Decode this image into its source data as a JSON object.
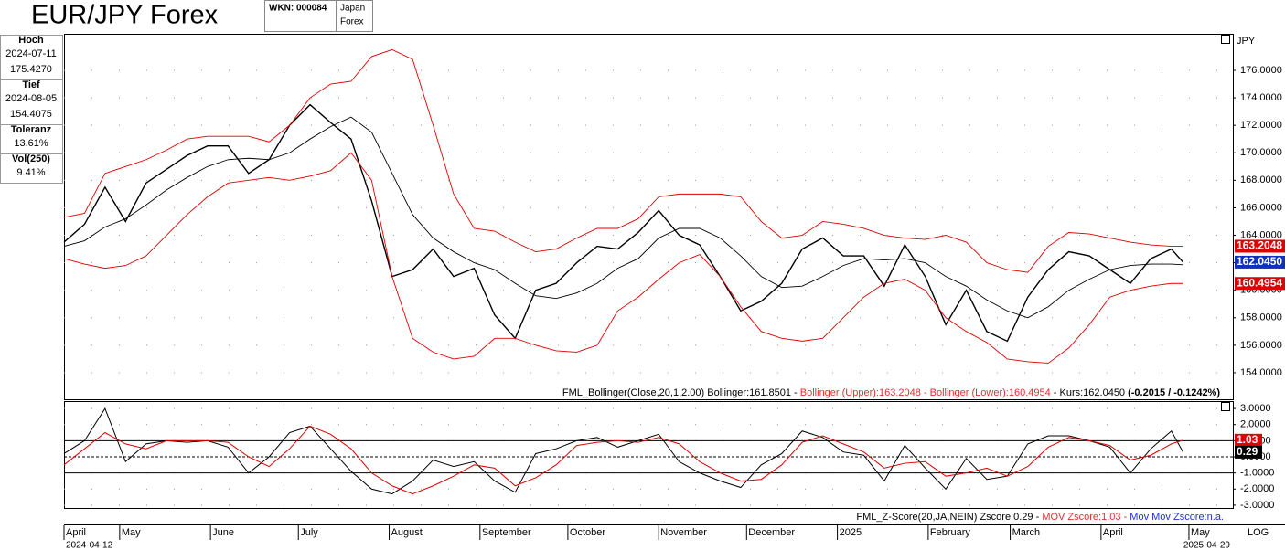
{
  "header": {
    "title": "EUR/JPY Forex",
    "wkn": "WKN: 000084",
    "market": [
      "Japan",
      "Forex"
    ]
  },
  "info_panel": [
    {
      "label": "Hoch",
      "values": [
        "2024-07-11",
        "175.4270"
      ]
    },
    {
      "label": "Tief",
      "values": [
        "2024-08-05",
        "154.4075"
      ]
    },
    {
      "label": "Toleranz",
      "values": [
        "13.61%"
      ]
    },
    {
      "label": "Vol(250)",
      "values": [
        "9.41%"
      ]
    }
  ],
  "scale_button": "LOG",
  "chart_data": [
    {
      "type": "line",
      "ylabel": "JPY",
      "grid": true,
      "xlim": [
        "2024-04-12",
        "2025-05-16"
      ],
      "ylim": [
        152.07,
        178.59
      ],
      "yticks": [
        {
          "value": 154,
          "label": "154.0000"
        },
        {
          "value": 156,
          "label": "156.0000"
        },
        {
          "value": 158,
          "label": "158.0000"
        },
        {
          "value": 160,
          "label": "160.0000"
        },
        {
          "value": 162,
          "label": "162.0000"
        },
        {
          "value": 164,
          "label": "164.0000"
        },
        {
          "value": 166,
          "label": "166.0000"
        },
        {
          "value": 168,
          "label": "168.0000"
        },
        {
          "value": 170,
          "label": "170.0000"
        },
        {
          "value": 172,
          "label": "172.0000"
        },
        {
          "value": 174,
          "label": "174.0000"
        },
        {
          "value": 176,
          "label": "176.0000"
        }
      ],
      "x": [
        "2024-04-12",
        "2024-04-19",
        "2024-04-26",
        "2024-05-03",
        "2024-05-10",
        "2024-05-17",
        "2024-05-24",
        "2024-05-31",
        "2024-06-07",
        "2024-06-14",
        "2024-06-21",
        "2024-06-28",
        "2024-07-05",
        "2024-07-12",
        "2024-07-19",
        "2024-07-26",
        "2024-08-02",
        "2024-08-09",
        "2024-08-16",
        "2024-08-23",
        "2024-08-30",
        "2024-09-06",
        "2024-09-13",
        "2024-09-20",
        "2024-09-27",
        "2024-10-04",
        "2024-10-11",
        "2024-10-18",
        "2024-10-25",
        "2024-11-01",
        "2024-11-08",
        "2024-11-15",
        "2024-11-22",
        "2024-11-29",
        "2024-12-06",
        "2024-12-13",
        "2024-12-20",
        "2024-12-27",
        "2025-01-03",
        "2025-01-10",
        "2025-01-17",
        "2025-01-24",
        "2025-01-31",
        "2025-02-07",
        "2025-02-14",
        "2025-02-21",
        "2025-02-28",
        "2025-03-07",
        "2025-03-14",
        "2025-03-21",
        "2025-03-28",
        "2025-04-04",
        "2025-04-11",
        "2025-04-18",
        "2025-04-25",
        "2025-04-29"
      ],
      "series": [
        {
          "color": "#000000",
          "width": 1.4,
          "values": [
            163.5,
            164.8,
            167.5,
            165.0,
            167.8,
            168.8,
            169.8,
            170.5,
            170.5,
            168.5,
            169.5,
            172.0,
            173.5,
            172.2,
            171.0,
            166.5,
            161.0,
            161.5,
            163.0,
            161.0,
            161.6,
            158.2,
            156.5,
            160.0,
            160.5,
            162.0,
            163.2,
            163.0,
            164.2,
            165.8,
            164.0,
            163.3,
            161.0,
            158.5,
            159.2,
            160.5,
            163.0,
            163.8,
            162.5,
            162.5,
            160.3,
            163.3,
            161.0,
            157.5,
            160.0,
            157.0,
            156.3,
            159.5,
            161.5,
            162.8,
            162.5,
            161.5,
            160.5,
            162.3,
            163.0,
            162.045
          ]
        },
        {
          "color": "#000000",
          "width": 0.9,
          "values": [
            163.2,
            163.6,
            164.6,
            165.2,
            166.2,
            167.3,
            168.2,
            169.0,
            169.5,
            169.6,
            169.5,
            170.0,
            171.0,
            171.9,
            172.6,
            171.5,
            168.5,
            165.5,
            163.8,
            162.8,
            162.0,
            161.5,
            160.5,
            159.6,
            159.4,
            159.8,
            160.5,
            161.6,
            162.3,
            163.8,
            164.5,
            164.5,
            163.8,
            162.5,
            161.0,
            160.2,
            160.3,
            161.0,
            161.8,
            162.3,
            162.2,
            162.3,
            162.0,
            161.0,
            160.3,
            159.3,
            158.5,
            158.0,
            158.8,
            160.0,
            160.8,
            161.5,
            161.8,
            161.9,
            161.9,
            161.8501
          ]
        },
        {
          "color": "#e00000",
          "width": 0.9,
          "values": [
            165.3,
            165.6,
            168.5,
            169.0,
            169.5,
            170.2,
            171.0,
            171.2,
            171.2,
            171.2,
            170.8,
            172.0,
            174.0,
            175.0,
            175.2,
            177.0,
            177.5,
            176.8,
            172.0,
            167.0,
            164.5,
            164.3,
            163.5,
            162.8,
            163.0,
            163.8,
            164.5,
            164.5,
            165.2,
            166.8,
            167.0,
            167.0,
            167.0,
            166.8,
            165.0,
            163.8,
            164.0,
            165.0,
            164.8,
            164.5,
            164.0,
            163.8,
            163.7,
            164.0,
            163.5,
            162.0,
            161.5,
            161.3,
            163.2,
            164.2,
            164.1,
            163.8,
            163.5,
            163.3,
            163.2,
            163.2048
          ]
        },
        {
          "color": "#e00000",
          "width": 0.9,
          "values": [
            162.3,
            161.9,
            161.6,
            161.8,
            162.5,
            164.0,
            165.5,
            166.8,
            167.8,
            168.0,
            168.2,
            168.0,
            168.3,
            168.7,
            170.0,
            168.0,
            161.0,
            156.5,
            155.5,
            155.0,
            155.2,
            156.5,
            156.5,
            156.0,
            155.6,
            155.5,
            156.0,
            158.5,
            159.5,
            160.8,
            162.0,
            162.6,
            161.0,
            158.8,
            157.0,
            156.5,
            156.3,
            156.5,
            158.0,
            159.5,
            160.5,
            160.8,
            160.0,
            158.0,
            157.0,
            156.2,
            155.0,
            154.8,
            154.7,
            155.8,
            157.5,
            159.5,
            160.0,
            160.3,
            160.5,
            160.4954
          ]
        }
      ],
      "end_labels": [
        {
          "value": 163.2048,
          "label": "163.2048",
          "color": "#e00000"
        },
        {
          "value": 162.045,
          "label": "162.0450",
          "color": "#1030c0"
        },
        {
          "value": 160.4954,
          "label": "160.4954",
          "color": "#e00000"
        }
      ],
      "legend": [
        {
          "text": "FML_Bollinger(Close,20,1,2.00) Bollinger:161.8501 - ",
          "color": "#000000",
          "bold": false
        },
        {
          "text": "Bollinger (Upper):163.2048 - Bollinger (Lower):160.4954",
          "color": "#e03030",
          "bold": false
        },
        {
          "text": " - Kurs:162.0450 ",
          "color": "#000000",
          "bold": false
        },
        {
          "text": "(-0.2015 / -0.1242%)",
          "color": "#000000",
          "bold": true
        }
      ]
    },
    {
      "type": "line",
      "grid": true,
      "xlim": [
        "2024-04-12",
        "2025-05-16"
      ],
      "ylim": [
        -3.23,
        3.4
      ],
      "yticks": [
        {
          "value": 3,
          "label": "3.0000"
        },
        {
          "value": 2,
          "label": "2.0000"
        },
        {
          "value": 1,
          "label": "1.0000"
        },
        {
          "value": 0,
          "label": "0.0000"
        },
        {
          "value": -1,
          "label": "-1.0000"
        },
        {
          "value": -2,
          "label": "-2.0000"
        },
        {
          "value": -3,
          "label": "-3.0000"
        }
      ],
      "reference_lines": [
        {
          "value": 1,
          "style": "solid"
        },
        {
          "value": 0,
          "style": "dashed"
        },
        {
          "value": -1,
          "style": "solid"
        }
      ],
      "x": [
        "2024-04-12",
        "2024-04-19",
        "2024-04-26",
        "2024-05-03",
        "2024-05-10",
        "2024-05-17",
        "2024-05-24",
        "2024-05-31",
        "2024-06-07",
        "2024-06-14",
        "2024-06-21",
        "2024-06-28",
        "2024-07-05",
        "2024-07-12",
        "2024-07-19",
        "2024-07-26",
        "2024-08-02",
        "2024-08-09",
        "2024-08-16",
        "2024-08-23",
        "2024-08-30",
        "2024-09-06",
        "2024-09-13",
        "2024-09-20",
        "2024-09-27",
        "2024-10-04",
        "2024-10-11",
        "2024-10-18",
        "2024-10-25",
        "2024-11-01",
        "2024-11-08",
        "2024-11-15",
        "2024-11-22",
        "2024-11-29",
        "2024-12-06",
        "2024-12-13",
        "2024-12-20",
        "2024-12-27",
        "2025-01-03",
        "2025-01-10",
        "2025-01-17",
        "2025-01-24",
        "2025-01-31",
        "2025-02-07",
        "2025-02-14",
        "2025-02-21",
        "2025-02-28",
        "2025-03-07",
        "2025-03-14",
        "2025-03-21",
        "2025-03-28",
        "2025-04-04",
        "2025-04-11",
        "2025-04-18",
        "2025-04-25",
        "2025-04-29"
      ],
      "series": [
        {
          "color": "#000000",
          "width": 1,
          "values": [
            0.2,
            1.0,
            3.0,
            -0.3,
            0.8,
            1.0,
            0.9,
            1.0,
            0.6,
            -1.0,
            0.0,
            1.5,
            1.9,
            0.5,
            -0.9,
            -2.0,
            -2.3,
            -1.5,
            -0.2,
            -0.6,
            -0.3,
            -1.5,
            -2.2,
            0.2,
            0.5,
            1.0,
            1.2,
            0.6,
            1.0,
            1.4,
            -0.3,
            -1.0,
            -1.5,
            -1.9,
            -0.5,
            0.2,
            1.6,
            1.2,
            0.3,
            0.1,
            -1.5,
            0.7,
            -0.7,
            -2.0,
            -0.1,
            -1.4,
            -1.2,
            0.8,
            1.3,
            1.3,
            1.0,
            0.6,
            -1.0,
            0.5,
            1.6,
            0.29
          ]
        },
        {
          "color": "#e00000",
          "width": 1,
          "values": [
            -0.5,
            0.5,
            1.5,
            0.8,
            0.5,
            1.0,
            1.0,
            1.0,
            0.9,
            0.0,
            -0.6,
            0.5,
            1.9,
            1.4,
            0.5,
            -1.0,
            -1.8,
            -2.3,
            -1.8,
            -1.2,
            -0.5,
            -0.7,
            -1.8,
            -1.3,
            -0.5,
            0.7,
            0.9,
            1.0,
            0.9,
            1.2,
            0.8,
            -0.3,
            -1.0,
            -1.5,
            -1.4,
            -0.5,
            0.9,
            1.3,
            0.8,
            0.3,
            -0.7,
            -0.4,
            -0.3,
            -1.2,
            -1.0,
            -0.7,
            -1.2,
            -0.6,
            0.6,
            1.2,
            1.0,
            0.7,
            -0.2,
            0.1,
            0.8,
            1.03
          ]
        }
      ],
      "end_labels": [
        {
          "value": 1.03,
          "label": "1.03",
          "color": "#e00000"
        },
        {
          "value": 0.29,
          "label": "0.29",
          "color": "#000000"
        }
      ],
      "legend": [
        {
          "text": "FML_Z-Score(20,JA,NEIN) Zscore:0.29 - ",
          "color": "#000000",
          "bold": false
        },
        {
          "text": "MOV Zscore:1.03 - ",
          "color": "#e03030",
          "bold": false
        },
        {
          "text": "Mov Mov Zscore:n.a.",
          "color": "#2030d0",
          "bold": false
        }
      ],
      "xticks": [
        {
          "value": "2024-04-12",
          "label": "April"
        },
        {
          "value": "2024-05-01",
          "label": "May"
        },
        {
          "value": "2024-06-01",
          "label": "June"
        },
        {
          "value": "2024-07-01",
          "label": "July"
        },
        {
          "value": "2024-08-01",
          "label": "August"
        },
        {
          "value": "2024-09-01",
          "label": "September"
        },
        {
          "value": "2024-10-01",
          "label": "October"
        },
        {
          "value": "2024-11-01",
          "label": "November"
        },
        {
          "value": "2024-12-01",
          "label": "December"
        },
        {
          "value": "2025-01-01",
          "label": "2025"
        },
        {
          "value": "2025-02-01",
          "label": "February"
        },
        {
          "value": "2025-03-01",
          "label": "March"
        },
        {
          "value": "2025-04-01",
          "label": "April"
        },
        {
          "value": "2025-05-01",
          "label": "May"
        }
      ],
      "range_labels": [
        "2024-04-12",
        "2025-04-29"
      ]
    }
  ]
}
